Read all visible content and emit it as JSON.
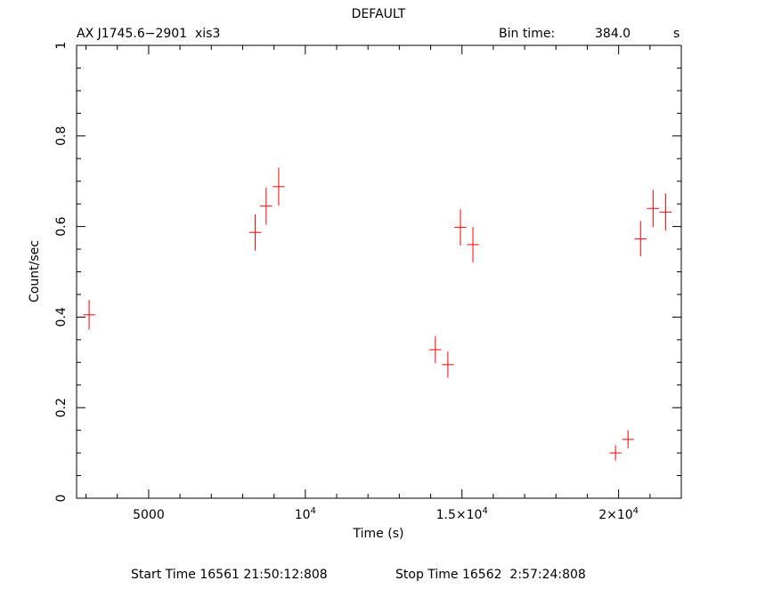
{
  "chart_data": {
    "type": "scatter",
    "title": "DEFAULT",
    "source_label": "AX J1745.6−2901  xis3",
    "bin_time_label": "Bin time:",
    "bin_time_value": "384.0",
    "bin_time_unit": "s",
    "xlabel": "Time (s)",
    "ylabel": "Count/sec",
    "xlim": [
      2700,
      22000
    ],
    "ylim": [
      0,
      1
    ],
    "x_ticks": [
      {
        "value": 5000,
        "label": "5000"
      },
      {
        "value": 10000,
        "label": "10",
        "sup": "4"
      },
      {
        "value": 15000,
        "label": "1.5×10",
        "sup": "4"
      },
      {
        "value": 20000,
        "label": "2×10",
        "sup": "4"
      }
    ],
    "y_ticks": [
      {
        "value": 0,
        "label": "0"
      },
      {
        "value": 0.2,
        "label": "0.2"
      },
      {
        "value": 0.4,
        "label": "0.4"
      },
      {
        "value": 0.6,
        "label": "0.6"
      },
      {
        "value": 0.8,
        "label": "0.8"
      },
      {
        "value": 1,
        "label": "1"
      }
    ],
    "marker_color": "#ff0000",
    "bin_half_width": 192,
    "points": [
      {
        "x": 3100,
        "y": 0.405,
        "err": 0.033
      },
      {
        "x": 8400,
        "y": 0.587,
        "err": 0.04
      },
      {
        "x": 8750,
        "y": 0.645,
        "err": 0.041
      },
      {
        "x": 9150,
        "y": 0.688,
        "err": 0.042
      },
      {
        "x": 14150,
        "y": 0.328,
        "err": 0.03
      },
      {
        "x": 14550,
        "y": 0.295,
        "err": 0.029
      },
      {
        "x": 14950,
        "y": 0.598,
        "err": 0.04
      },
      {
        "x": 15350,
        "y": 0.56,
        "err": 0.039
      },
      {
        "x": 19900,
        "y": 0.1,
        "err": 0.017
      },
      {
        "x": 20300,
        "y": 0.13,
        "err": 0.02
      },
      {
        "x": 20700,
        "y": 0.573,
        "err": 0.039
      },
      {
        "x": 21100,
        "y": 0.64,
        "err": 0.041
      },
      {
        "x": 21500,
        "y": 0.632,
        "err": 0.041
      }
    ]
  },
  "footer": {
    "start_label": "Start Time 16561 21:50:12:808",
    "stop_label": "Stop Time 16562  2:57:24:808"
  }
}
